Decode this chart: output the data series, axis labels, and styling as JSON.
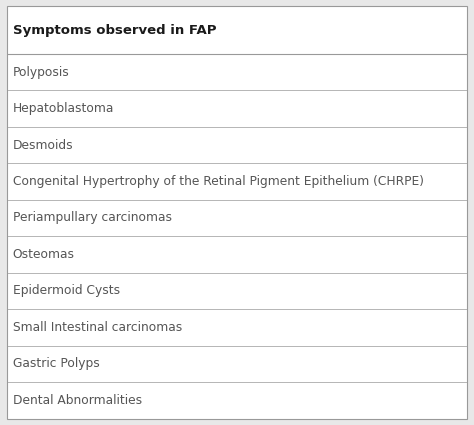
{
  "header": "Symptoms observed in FAP",
  "rows": [
    "Polyposis",
    "Hepatoblastoma",
    "Desmoids",
    "Congenital Hypertrophy of the Retinal Pigment Epithelium (CHRPE)",
    "Periampullary carcinomas",
    "Osteomas",
    "Epidermoid Cysts",
    "Small Intestinal carcinomas",
    "Gastric Polyps",
    "Dental Abnormalities"
  ],
  "bg_color": "#e8e8e8",
  "table_bg": "#ffffff",
  "line_color": "#999999",
  "header_font_size": 9.5,
  "row_font_size": 8.8,
  "header_text_color": "#1a1a1a",
  "row_text_color": "#555555",
  "header_font_weight": "bold",
  "fig_width": 4.74,
  "fig_height": 4.25,
  "dpi": 100
}
